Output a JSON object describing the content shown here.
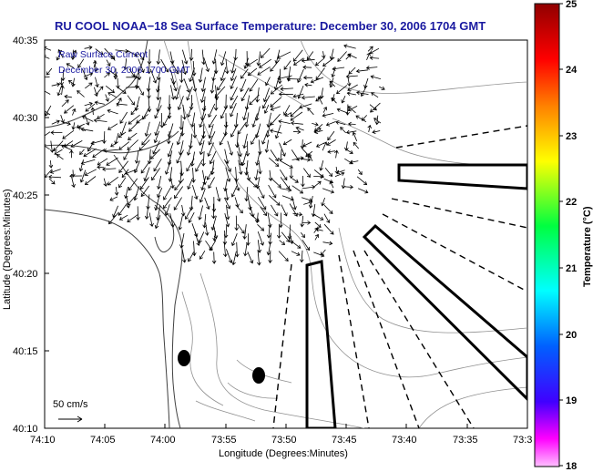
{
  "header": {
    "title": "RU COOL  NOAA−18  Sea Surface Temperature:  December 30, 2006 1704 GMT"
  },
  "legend": {
    "line1": "Raw Surface Current",
    "line2": "December 30, 2006 1700 GMT"
  },
  "scale": {
    "label": "50 cm/s"
  },
  "axes": {
    "xlabel": "Longitude (Degrees:Minutes)",
    "ylabel": "Latitude (Degrees:Minutes)",
    "xticks": [
      "74:10",
      "74:05",
      "74:00",
      "73:55",
      "73:50",
      "73:45",
      "73:40",
      "73:35",
      "73:3"
    ],
    "yticks": [
      "40:35",
      "40:30",
      "40:25",
      "40:20",
      "40:15",
      "40:10"
    ]
  },
  "colorbar": {
    "label": "Temperature (°C)",
    "ticks": [
      "25",
      "24",
      "23",
      "22",
      "21",
      "20",
      "19",
      "18"
    ],
    "range": [
      18,
      25
    ],
    "colors": [
      "#ff00ff",
      "#0000ff",
      "#00ffff",
      "#00ff00",
      "#ffff00",
      "#ff8000",
      "#ff0000",
      "#8b0000"
    ]
  },
  "colors": {
    "title": "#1a1aa0",
    "frame": "#000000",
    "contour": "#909090",
    "coast": "#404040"
  }
}
